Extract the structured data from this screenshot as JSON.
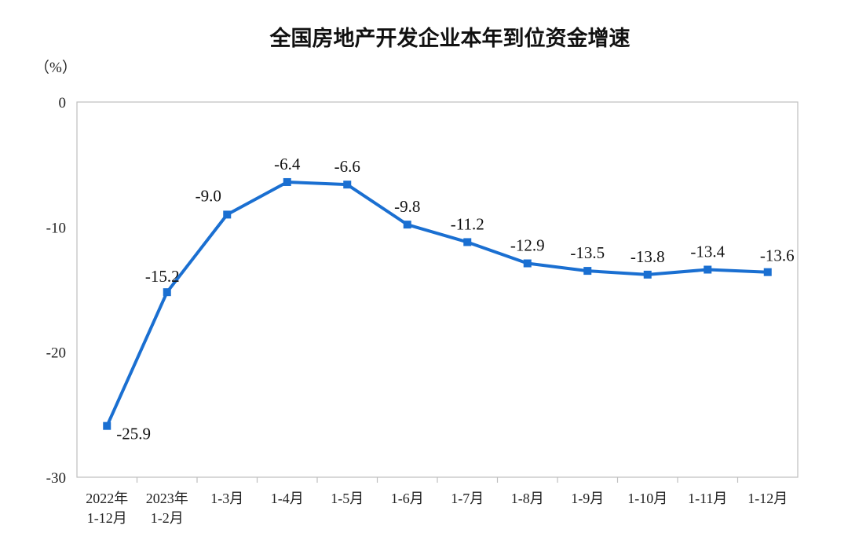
{
  "chart_data": {
    "type": "line",
    "title": "全国房地产开发企业本年到位资金增速",
    "unit_label": "（%）",
    "ylim": [
      -30,
      0
    ],
    "yticks": [
      "0",
      "-10",
      "-20",
      "-30"
    ],
    "categories": [
      [
        "2022年",
        "1-12月"
      ],
      [
        "2023年",
        "1-2月"
      ],
      [
        "1-3月"
      ],
      [
        "1-4月"
      ],
      [
        "1-5月"
      ],
      [
        "1-6月"
      ],
      [
        "1-7月"
      ],
      [
        "1-8月"
      ],
      [
        "1-9月"
      ],
      [
        "1-10月"
      ],
      [
        "1-11月"
      ],
      [
        "1-12月"
      ]
    ],
    "series": [
      {
        "values": [
          -25.9,
          -15.2,
          -9.0,
          -6.4,
          -6.6,
          -9.8,
          -11.2,
          -12.9,
          -13.5,
          -13.8,
          -13.4,
          -13.6
        ],
        "labels": [
          "-25.9",
          "-15.2",
          "-9.0",
          "-6.4",
          "-6.6",
          "-9.8",
          "-11.2",
          "-12.9",
          "-13.5",
          "-13.8",
          "-13.4",
          "-13.6"
        ],
        "color": "#1a6fd1"
      }
    ],
    "grid": false,
    "axis_color": "#bfbfbf"
  }
}
